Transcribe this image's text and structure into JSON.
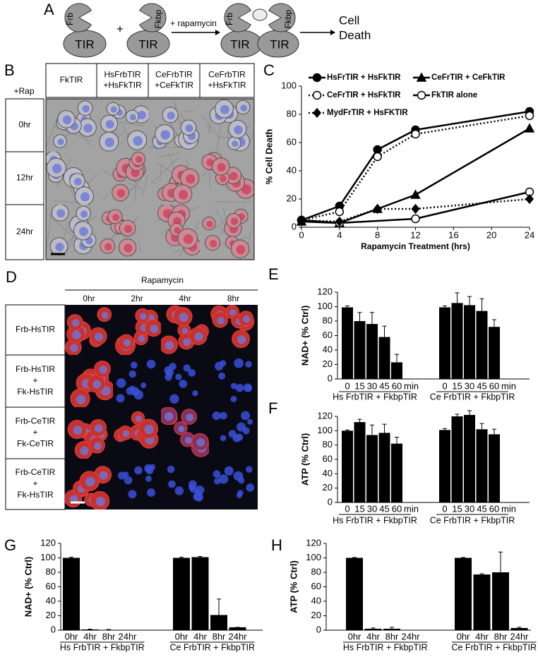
{
  "figure_a": {
    "label": "A",
    "subunit_1": {
      "domain": "Frb",
      "core": "TIR"
    },
    "plus": "+",
    "subunit_2": {
      "domain": "Fkbp",
      "core": "TIR"
    },
    "arrow_label": "+ rapamycin",
    "complex": {
      "domain_1": "Frb",
      "domain_2": "Fkbp",
      "core_1": "TIR",
      "core_2": "TIR"
    },
    "outcome": [
      "Cell",
      "Death"
    ]
  },
  "figure_b": {
    "label": "B",
    "treatment": "+Rap",
    "columns": [
      [
        "FkTIR"
      ],
      [
        "HsFrbTIR",
        "+HsFkTIR"
      ],
      [
        "CeFrbTIR",
        "+CeFkTIR"
      ],
      [
        "CeFrbTIR",
        "+HsFkTIR"
      ]
    ],
    "rows": [
      "0hr",
      "12hr",
      "24hr"
    ]
  },
  "figure_d": {
    "label": "D",
    "treatment": "Rapamycin",
    "columns": [
      "0hr",
      "2hr",
      "4hr",
      "8hr"
    ],
    "rows": [
      [
        "Frb-HsTIR"
      ],
      [
        "Frb-HsTIR",
        "+",
        "Fk-HsTIR"
      ],
      [
        "Frb-CeTIR",
        "+",
        "Fk-CeTIR"
      ],
      [
        "Frb-CeTIR",
        "+",
        "Fk-HsTIR"
      ]
    ]
  },
  "chart_data": [
    {
      "type": "line",
      "panel_label": "C",
      "xlabel": "Rapamycin Treatment (hrs)",
      "ylabel": "% Cell Death",
      "x": [
        0,
        4,
        8,
        12,
        24
      ],
      "xlim": [
        0,
        24
      ],
      "xticks": [
        0,
        4,
        8,
        12,
        16,
        20,
        24
      ],
      "ylim": [
        0,
        100
      ],
      "yticks": [
        0,
        20,
        40,
        60,
        80,
        100
      ],
      "series": [
        {
          "name": "HsFrTIR + HsFkTIR",
          "color": "#000000",
          "marker": "circle",
          "filled": true,
          "dash": "solid",
          "values": [
            5,
            15,
            55,
            69,
            82
          ]
        },
        {
          "name": "CeFrTIR + CeFkTIR",
          "color": "#000000",
          "marker": "triangle",
          "filled": true,
          "dash": "solid",
          "values": [
            4,
            3,
            13,
            23,
            70
          ]
        },
        {
          "name": "CeFrTIR + HsFkTIR",
          "color": "#000000",
          "marker": "circle",
          "filled": false,
          "dash": "dotted",
          "values": [
            5,
            11,
            50,
            66,
            79
          ]
        },
        {
          "name": "FkTIR alone",
          "color": "#000000",
          "marker": "circle",
          "filled": false,
          "dash": "solid",
          "x": [
            0,
            4,
            12,
            24
          ],
          "values": [
            5,
            3,
            6,
            25
          ]
        },
        {
          "name": "MydFrTIR + HsFKTIR",
          "color": "#000000",
          "marker": "diamond",
          "filled": true,
          "dash": "dotted",
          "values": [
            5,
            4,
            13,
            13,
            20
          ]
        }
      ]
    },
    {
      "type": "bar",
      "panel_label": "E",
      "ylabel": "NAD+ (% Ctrl)",
      "ylim": [
        0,
        120
      ],
      "yticks": [
        0,
        20,
        40,
        60,
        80,
        100,
        120
      ],
      "color": "#000000",
      "unit_label": "min",
      "groups": [
        {
          "label": "Hs FrbTIR + FkbpTIR",
          "categories": [
            "0",
            "15",
            "30",
            "45",
            "60"
          ],
          "values": [
            99,
            80,
            76,
            58,
            23
          ],
          "errors": [
            2,
            12,
            16,
            15,
            11
          ]
        },
        {
          "label": "Ce FrbTIR + FkbpTIR",
          "categories": [
            "0",
            "15",
            "30",
            "45",
            "60"
          ],
          "values": [
            99,
            105,
            102,
            94,
            72
          ],
          "errors": [
            2,
            14,
            12,
            17,
            10
          ]
        }
      ]
    },
    {
      "type": "bar",
      "panel_label": "F",
      "ylabel": "ATP (% Ctrl)",
      "ylim": [
        0,
        120
      ],
      "yticks": [
        0,
        20,
        40,
        60,
        80,
        100,
        120
      ],
      "color": "#000000",
      "unit_label": "min",
      "groups": [
        {
          "label": "Hs FrbTIR + FkbpTIR",
          "categories": [
            "0",
            "15",
            "30",
            "45",
            "60"
          ],
          "values": [
            100,
            112,
            94,
            97,
            82
          ],
          "errors": [
            1,
            4,
            14,
            12,
            9
          ]
        },
        {
          "label": "Ce FrbTIR + FkbpTIR",
          "categories": [
            "0",
            "15",
            "30",
            "45",
            "60"
          ],
          "values": [
            101,
            120,
            122,
            102,
            95
          ],
          "errors": [
            2,
            3,
            6,
            8,
            7
          ]
        }
      ]
    },
    {
      "type": "bar",
      "panel_label": "G",
      "ylabel": "NAD+ (% Ctrl)",
      "ylim": [
        0,
        120
      ],
      "yticks": [
        0,
        20,
        40,
        60,
        80,
        100,
        120
      ],
      "color": "#000000",
      "groups": [
        {
          "label": "Hs FrbTIR + FkbpTIR",
          "categories": [
            "0hr",
            "4hr",
            "8hr",
            "24hr"
          ],
          "values": [
            100,
            1,
            0.5,
            0
          ],
          "errors": [
            1,
            0.5,
            0.5,
            0
          ]
        },
        {
          "label": "Ce FrbTIR + FkbpTIR",
          "categories": [
            "0hr",
            "4hr",
            "8hr",
            "24hr"
          ],
          "values": [
            100,
            101,
            21,
            4
          ],
          "errors": [
            1,
            1,
            22,
            0
          ]
        }
      ]
    },
    {
      "type": "bar",
      "panel_label": "H",
      "ylabel": "ATP (% Ctrl)",
      "ylim": [
        0,
        120
      ],
      "yticks": [
        0,
        20,
        40,
        60,
        80,
        100,
        120
      ],
      "color": "#000000",
      "groups": [
        {
          "label": "Hs FrbTIR + FkbpTIR",
          "categories": [
            "0hr",
            "4hr",
            "8hr",
            "24hr"
          ],
          "values": [
            100,
            2,
            2,
            0
          ],
          "errors": [
            0.5,
            1,
            2,
            0
          ]
        },
        {
          "label": "Ce FrbTIR + FkbpTIR",
          "categories": [
            "0hr",
            "4hr",
            "8hr",
            "24hr"
          ],
          "values": [
            100,
            77,
            80,
            3
          ],
          "errors": [
            0.5,
            1,
            28,
            1
          ]
        }
      ]
    }
  ]
}
